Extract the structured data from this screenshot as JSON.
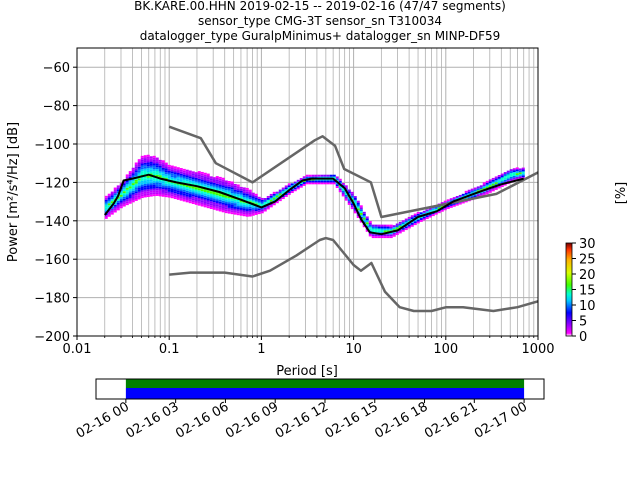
{
  "chart_data": {
    "type": "heatmap",
    "title_lines": [
      "BK.KARE.00.HHN   2019-02-15 -- 2019-02-16  (47/47 segments)",
      "sensor_type CMG-3T sensor_sn T310034",
      "datalogger_type GuralpMinimus+ datalogger_sn MINP-DF59"
    ],
    "xlabel": "Period [s]",
    "ylabel": "Power [m²/s⁴/Hz] [dB]",
    "x_scale": "log",
    "xlim": [
      0.01,
      1000
    ],
    "ylim": [
      -200,
      -50
    ],
    "grid": true,
    "x_tick_labels": [
      "0.01",
      "0.1",
      "1",
      "10",
      "100",
      "1000"
    ],
    "x_tick_values": [
      0.01,
      0.1,
      1,
      10,
      100,
      1000
    ],
    "y_tick_labels": [
      "−60",
      "−80",
      "−100",
      "−120",
      "−140",
      "−160",
      "−180",
      "−200"
    ],
    "y_tick_values": [
      -60,
      -80,
      -100,
      -120,
      -140,
      -160,
      -180,
      -200
    ],
    "colorbar": {
      "label": "[%]",
      "range": [
        0,
        30
      ],
      "tick_labels": [
        "0",
        "5",
        "10",
        "15",
        "20",
        "25",
        "30"
      ],
      "tick_values": [
        0,
        5,
        10,
        15,
        20,
        25,
        30
      ]
    },
    "series": [
      {
        "role": "noise_model_high",
        "color": "#666666",
        "points": [
          [
            0.1,
            -91
          ],
          [
            0.22,
            -97
          ],
          [
            0.32,
            -110
          ],
          [
            0.8,
            -120
          ],
          [
            3.8,
            -98
          ],
          [
            4.6,
            -96
          ],
          [
            6.3,
            -101
          ],
          [
            7.9,
            -113
          ],
          [
            15.4,
            -120
          ],
          [
            20,
            -138
          ],
          [
            354,
            -126
          ],
          [
            10000,
            -90
          ]
        ]
      },
      {
        "role": "noise_model_low",
        "color": "#666666",
        "points": [
          [
            0.1,
            -168
          ],
          [
            0.17,
            -167
          ],
          [
            0.4,
            -167
          ],
          [
            0.8,
            -169
          ],
          [
            1.24,
            -166
          ],
          [
            2.4,
            -158
          ],
          [
            4.3,
            -150
          ],
          [
            5,
            -149
          ],
          [
            6,
            -150
          ],
          [
            10,
            -163
          ],
          [
            12,
            -166
          ],
          [
            15.6,
            -162
          ],
          [
            21.9,
            -177
          ],
          [
            31.6,
            -185
          ],
          [
            45,
            -187
          ],
          [
            70,
            -187
          ],
          [
            101,
            -185
          ],
          [
            154,
            -185
          ],
          [
            328,
            -187
          ],
          [
            600,
            -185
          ],
          [
            10000,
            -168
          ]
        ]
      },
      {
        "role": "mean_psd",
        "color": "#000000",
        "points": [
          [
            0.02,
            -137
          ],
          [
            0.025,
            -131
          ],
          [
            0.028,
            -127
          ],
          [
            0.032,
            -119
          ],
          [
            0.04,
            -118
          ],
          [
            0.06,
            -116
          ],
          [
            0.08,
            -118
          ],
          [
            0.12,
            -120
          ],
          [
            0.2,
            -122
          ],
          [
            0.35,
            -125
          ],
          [
            0.6,
            -129
          ],
          [
            1,
            -133
          ],
          [
            1.4,
            -130
          ],
          [
            2,
            -124
          ],
          [
            2.8,
            -119
          ],
          [
            3.5,
            -118
          ],
          [
            6,
            -118
          ],
          [
            8,
            -123
          ],
          [
            10,
            -131
          ],
          [
            12,
            -139
          ],
          [
            15,
            -146
          ],
          [
            20,
            -147
          ],
          [
            30,
            -145
          ],
          [
            50,
            -138
          ],
          [
            80,
            -135
          ],
          [
            120,
            -130
          ],
          [
            200,
            -126
          ],
          [
            300,
            -123
          ],
          [
            400,
            -121
          ],
          [
            700,
            -118
          ]
        ]
      }
    ],
    "psd_density_envelope": [
      {
        "period": 0.02,
        "top": -128,
        "bottom": -139
      },
      {
        "period": 0.03,
        "top": -120,
        "bottom": -133
      },
      {
        "period": 0.05,
        "top": -106,
        "bottom": -128
      },
      {
        "period": 0.07,
        "top": -107,
        "bottom": -127
      },
      {
        "period": 0.1,
        "top": -112,
        "bottom": -128
      },
      {
        "period": 0.2,
        "top": -115,
        "bottom": -132
      },
      {
        "period": 0.4,
        "top": -119,
        "bottom": -136
      },
      {
        "period": 0.7,
        "top": -124,
        "bottom": -138
      },
      {
        "period": 1,
        "top": -129,
        "bottom": -136
      },
      {
        "period": 2,
        "top": -121,
        "bottom": -126
      },
      {
        "period": 3,
        "top": -117,
        "bottom": -121
      },
      {
        "period": 6,
        "top": -116,
        "bottom": -121
      },
      {
        "period": 10,
        "top": -127,
        "bottom": -136
      },
      {
        "period": 15,
        "top": -142,
        "bottom": -149
      },
      {
        "period": 25,
        "top": -143,
        "bottom": -149
      },
      {
        "period": 50,
        "top": -136,
        "bottom": -141
      },
      {
        "period": 100,
        "top": -130,
        "bottom": -134
      },
      {
        "period": 250,
        "top": -121,
        "bottom": -127
      },
      {
        "period": 500,
        "top": -113,
        "bottom": -120
      },
      {
        "period": 700,
        "top": -113,
        "bottom": -118
      }
    ],
    "timeline": {
      "tick_labels": [
        "02-16 00",
        "02-16 03",
        "02-16 06",
        "02-16 09",
        "02-16 12",
        "02-16 15",
        "02-16 18",
        "02-16 21",
        "02-17 00"
      ],
      "range_hours": [
        -1.8,
        25.2
      ],
      "coverage_hours": [
        0,
        24
      ],
      "bar_colors": [
        "#008000",
        "#0000ff"
      ]
    }
  },
  "colors": {
    "noise_model": "#666666",
    "mean": "#000000",
    "grid": "#b0b0b0"
  }
}
